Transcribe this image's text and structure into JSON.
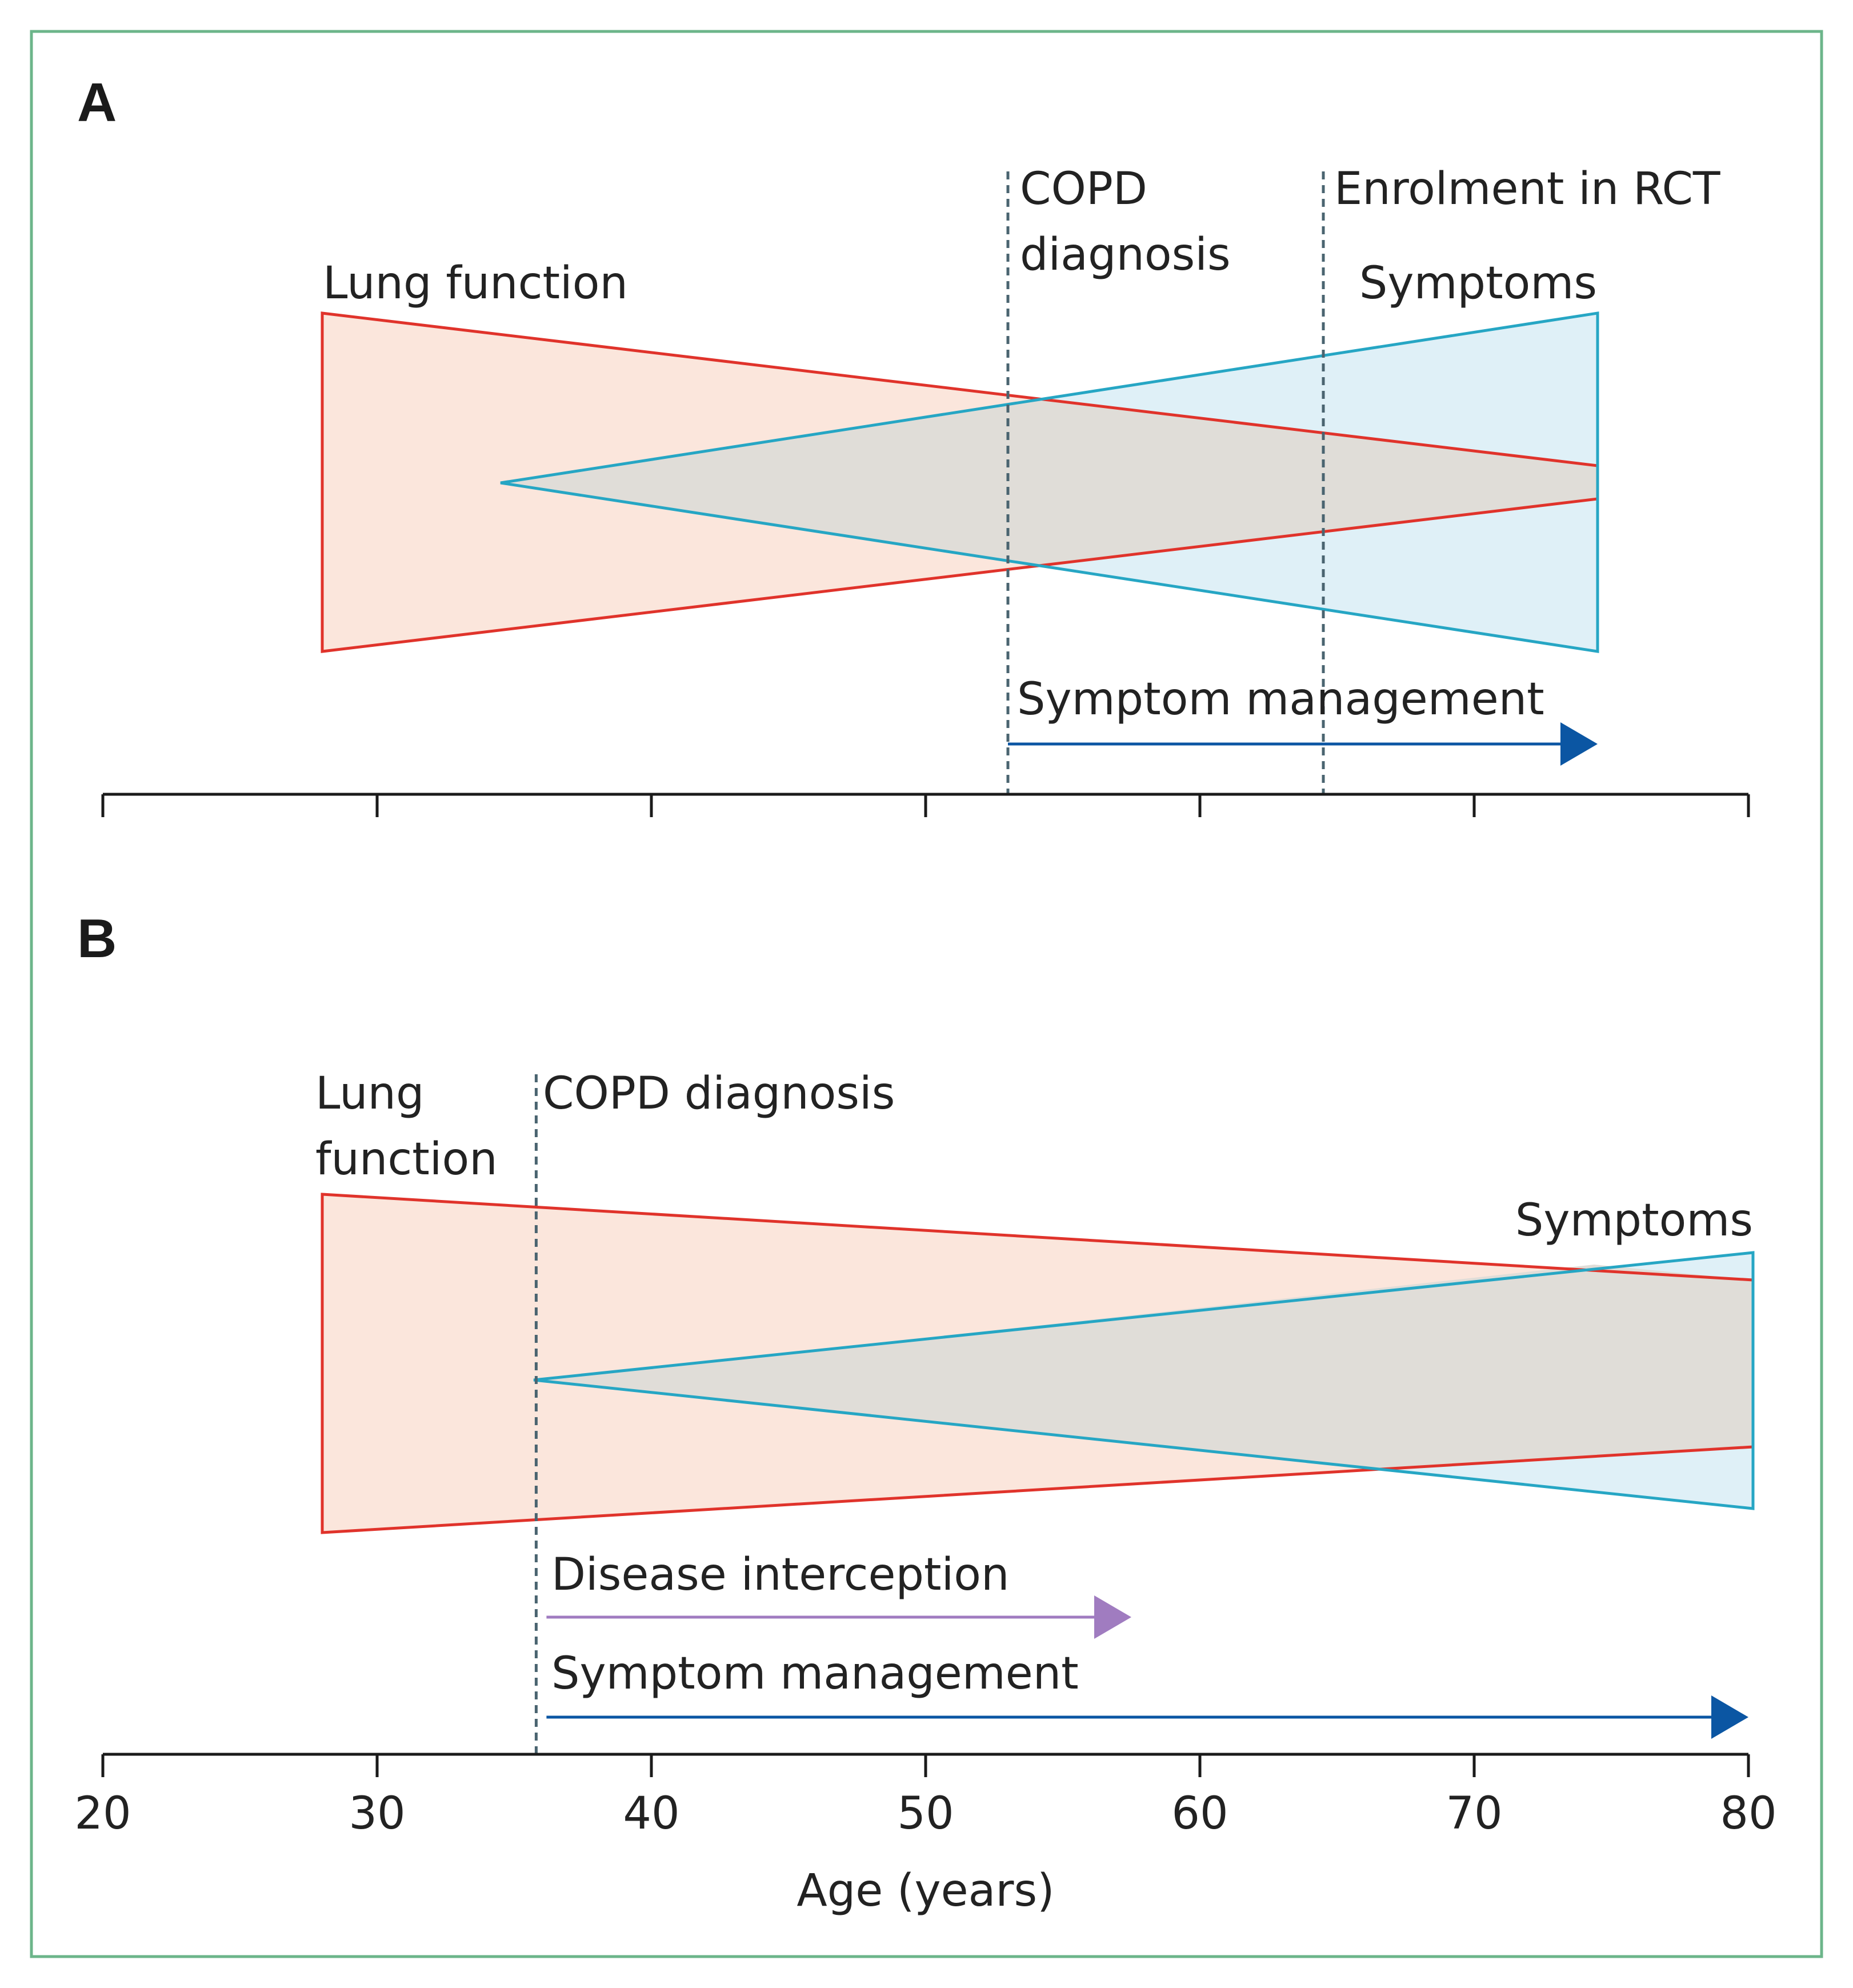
{
  "colors": {
    "frame": "#6cb58a",
    "lung_stroke": "#e0332b",
    "lung_fill": "#fbe6dc",
    "symptom_stroke": "#26a6c4",
    "symptom_fill": "#dff0f7",
    "overlap_fill": "#e0ddd8",
    "dashed": "#4a6470",
    "symptom_mgmt_arrow": "#0b56a3",
    "interception_arrow": "#a07cc0",
    "axis": "#1a1a1a"
  },
  "axis": {
    "title": "Age (years)",
    "range": [
      20,
      80
    ],
    "ticks": [
      20,
      30,
      40,
      50,
      60,
      70,
      80
    ],
    "tick_labels": [
      "20",
      "30",
      "40",
      "50",
      "60",
      "70",
      "80"
    ]
  },
  "panel_a": {
    "letter": "A",
    "lung_label": "Lung function",
    "symptoms_label": "Symptoms",
    "copd_label_line1": "COPD",
    "copd_label_line2": "diagnosis",
    "rct_label": "Enrolment in RCT",
    "symptom_mgmt_label": "Symptom management",
    "copd_age": 53,
    "rct_age": 64.5,
    "lung_start_age": 28,
    "lung_end_age": 74.5,
    "symptoms_start_age": 34.5,
    "symptoms_end_age": 74.5,
    "symptom_mgmt_start_age": 53,
    "symptom_mgmt_end_age": 74.5
  },
  "panel_b": {
    "letter": "B",
    "lung_label_line1": "Lung",
    "lung_label_line2": "function",
    "symptoms_label": "Symptoms",
    "copd_label": "COPD diagnosis",
    "interception_label": "Disease interception",
    "symptom_mgmt_label": "Symptom management",
    "copd_age": 35.8,
    "lung_start_age": 28,
    "lung_end_age": 80,
    "symptoms_start_age": 35.5,
    "symptoms_end_age": 80,
    "interception_start_age": 35.8,
    "interception_end_age": 57.5,
    "symptom_mgmt_start_age": 35.8,
    "symptom_mgmt_end_age": 80
  }
}
